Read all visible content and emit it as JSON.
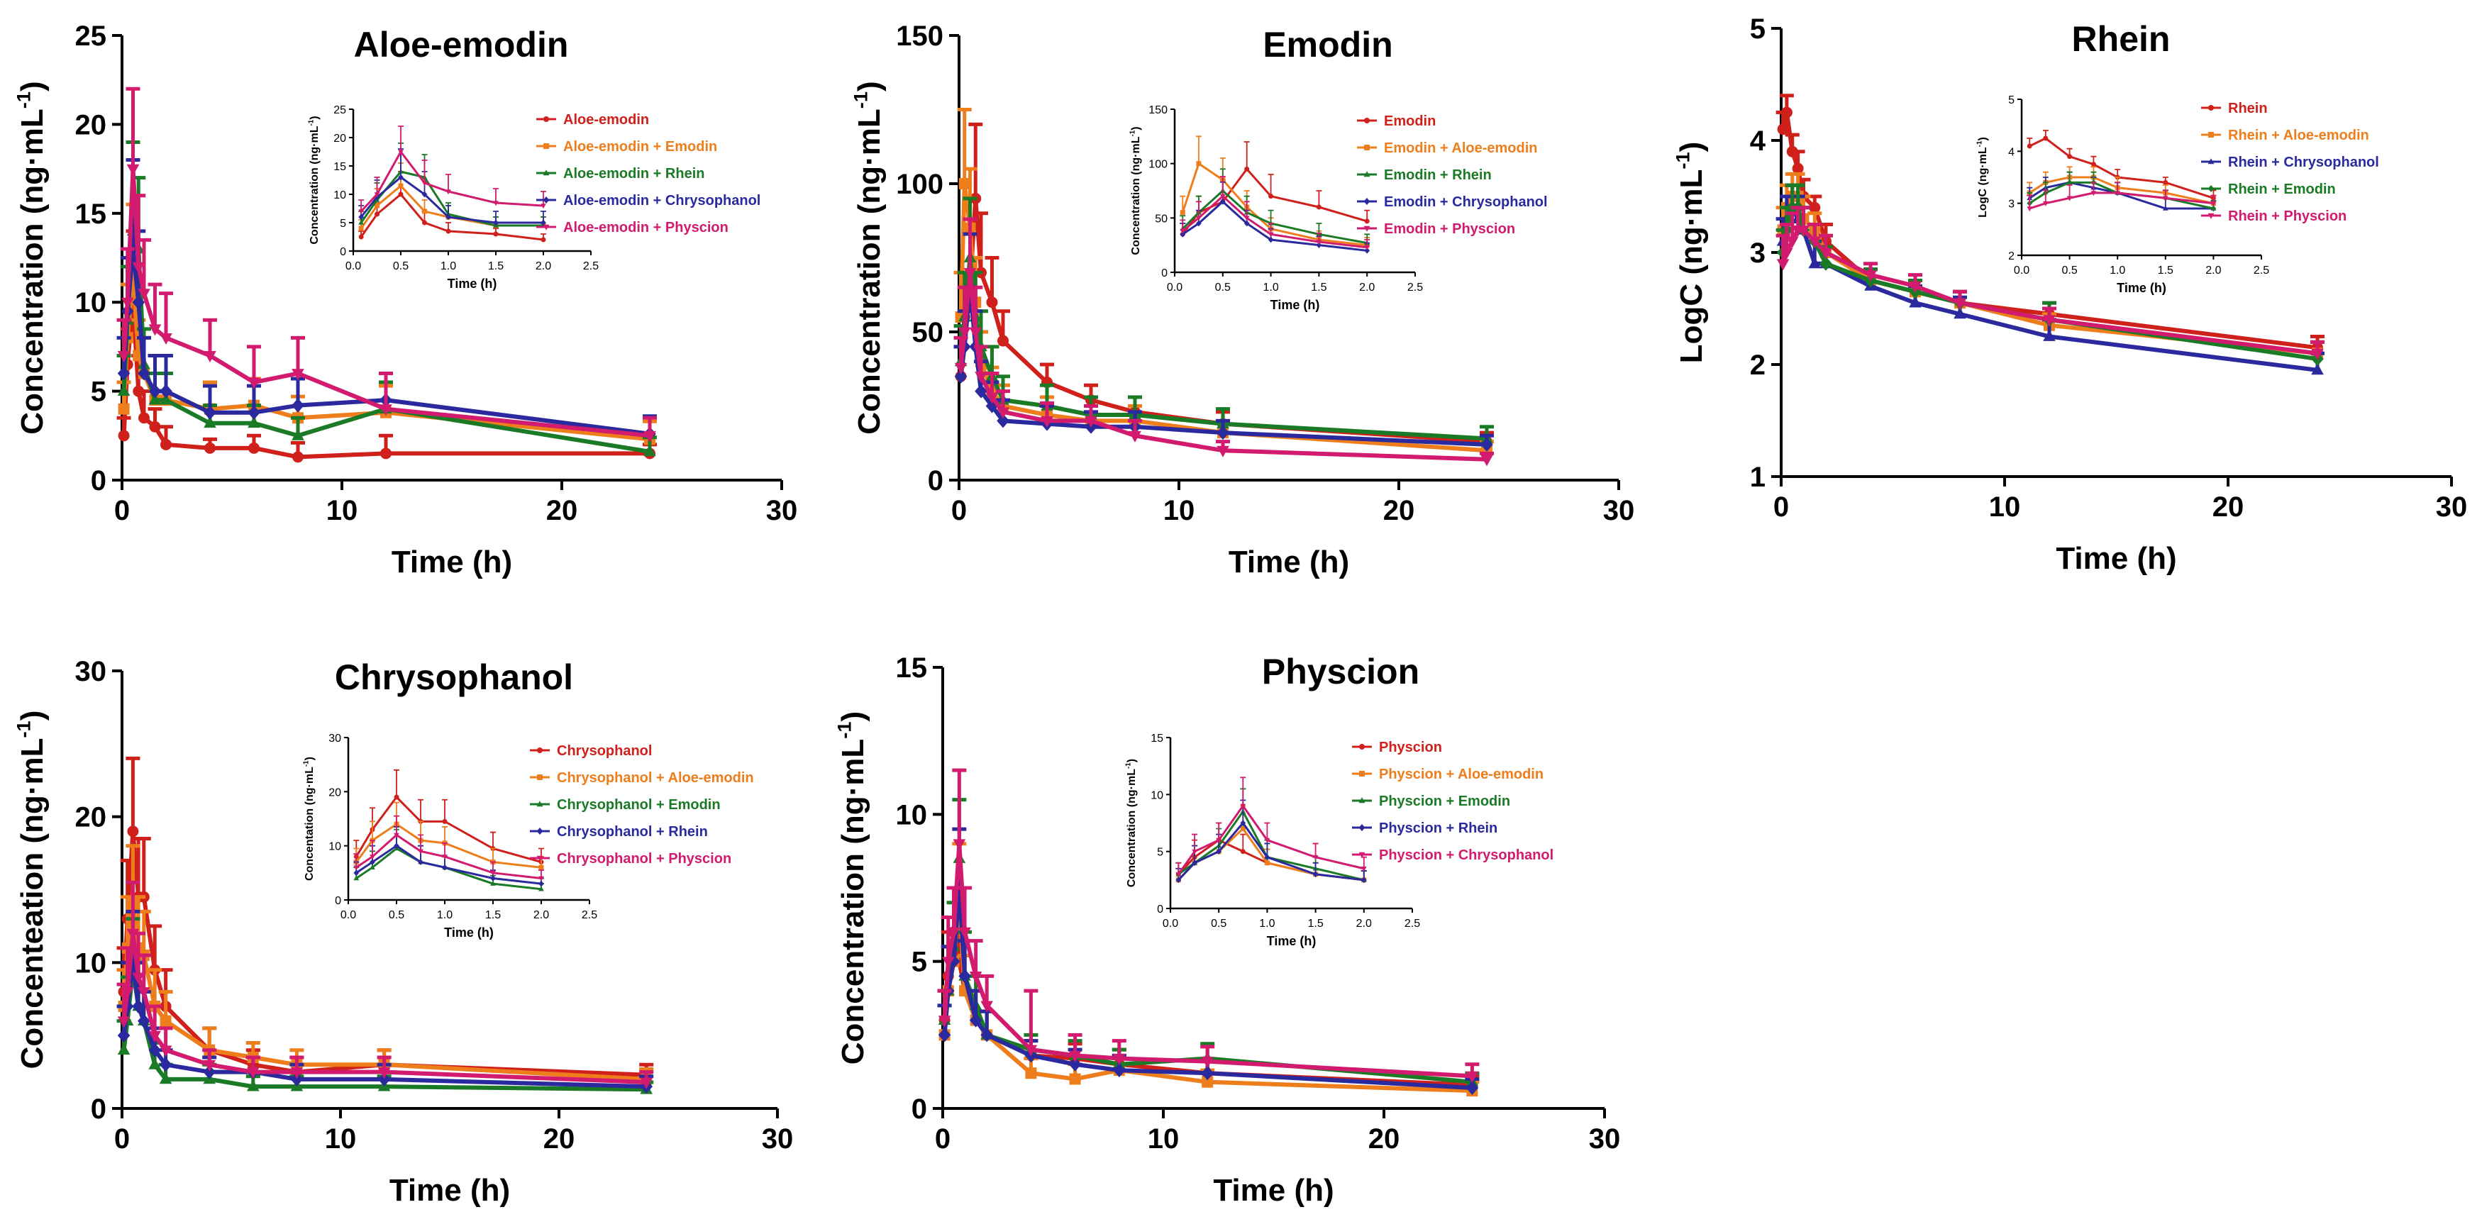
{
  "colors": {
    "red": "#d0201b",
    "orange": "#ee7d1c",
    "green": "#1a7a25",
    "blue": "#2a2a9e",
    "magenta": "#d21b6e"
  },
  "chart_data": [
    {
      "id": "aloe",
      "type": "line",
      "title": "Aloe-emodin",
      "xlabel": "Time (h)",
      "ylabel": "Concentration (ng·mL",
      "ylabel_sup": "-1",
      "ylabel_tail": ")",
      "xlim": [
        0,
        30
      ],
      "ylim": [
        0,
        25
      ],
      "xticks": [
        0,
        10,
        20,
        30
      ],
      "yticks": [
        0,
        5,
        10,
        15,
        20,
        25
      ],
      "x": [
        0.083,
        0.25,
        0.5,
        0.75,
        1,
        1.5,
        2,
        4,
        6,
        8,
        12,
        24
      ],
      "series": [
        {
          "name": "Aloe-emodin",
          "color": "red",
          "values": [
            2.5,
            6.5,
            10.0,
            5.0,
            3.5,
            3.0,
            2.0,
            1.8,
            1.8,
            1.3,
            1.5,
            1.5
          ],
          "err": [
            1,
            2,
            4,
            2,
            1.5,
            1,
            1,
            0.5,
            0.7,
            0.8,
            1,
            0.5
          ]
        },
        {
          "name": "Aloe-emodin + Emodin",
          "color": "orange",
          "values": [
            4.0,
            8.0,
            11.5,
            7.0,
            6.0,
            4.5,
            4.5,
            4.0,
            4.2,
            3.5,
            3.8,
            2.3
          ],
          "err": [
            1.5,
            3,
            4,
            2,
            2,
            1.5,
            1.5,
            1.5,
            1.5,
            1.2,
            1.5,
            1
          ]
        },
        {
          "name": "Aloe-emodin + Rhein",
          "color": "green",
          "values": [
            5.0,
            9.0,
            14.0,
            13.0,
            6.5,
            4.5,
            4.5,
            3.2,
            3.2,
            2.5,
            4.0,
            1.6
          ],
          "err": [
            2,
            3,
            5,
            4,
            2,
            1.5,
            1.5,
            1,
            1,
            1,
            1.5,
            0.8
          ]
        },
        {
          "name": "Aloe-emodin + Chrysophanol",
          "color": "blue",
          "values": [
            6.0,
            9.5,
            13.0,
            10.0,
            6.0,
            5.0,
            5.0,
            3.8,
            3.8,
            4.2,
            4.5,
            2.6
          ],
          "err": [
            2,
            3,
            5,
            4,
            2,
            2,
            2,
            1.5,
            1.5,
            1.5,
            1.5,
            1
          ]
        },
        {
          "name": "Aloe-emodin + Physcion",
          "color": "magenta",
          "values": [
            7.0,
            10.0,
            17.5,
            12.0,
            10.5,
            8.5,
            8.0,
            7.0,
            5.5,
            6.0,
            4.0,
            2.5
          ],
          "err": [
            2,
            3,
            4.5,
            4,
            3,
            2.5,
            2.5,
            2,
            2,
            2,
            2,
            1
          ]
        }
      ],
      "inset": {
        "xlabel": "Time (h)",
        "ylabel": "Concentration (ng·mL",
        "ylabel_sup": "-1",
        "ylabel_tail": ")",
        "xlim": [
          0,
          2.5
        ],
        "ylim": [
          0,
          25
        ],
        "xticks": [
          "0.0",
          "0.5",
          "1.0",
          "1.5",
          "2.0",
          "2.5"
        ],
        "yticks": [
          "0",
          "5",
          "10",
          "15",
          "20",
          "25"
        ],
        "npoints": 7
      }
    },
    {
      "id": "emodin",
      "type": "line",
      "title": "Emodin",
      "xlabel": "Time (h)",
      "ylabel": "Concentration (ng·mL",
      "ylabel_sup": "-1",
      "ylabel_tail": ")",
      "xlim": [
        0,
        30
      ],
      "ylim": [
        0,
        150
      ],
      "xticks": [
        0,
        10,
        20,
        30
      ],
      "yticks": [
        0,
        50,
        100,
        150
      ],
      "x": [
        0.083,
        0.25,
        0.5,
        0.75,
        1,
        1.5,
        2,
        4,
        6,
        8,
        12,
        24
      ],
      "series": [
        {
          "name": "Emodin",
          "color": "red",
          "values": [
            35,
            55,
            65,
            95,
            70,
            60,
            47,
            33,
            27,
            23,
            19,
            13
          ],
          "err": [
            10,
            15,
            20,
            25,
            20,
            15,
            10,
            6,
            5,
            5,
            4,
            3
          ]
        },
        {
          "name": "Emodin + Aloe-emodin",
          "color": "orange",
          "values": [
            55,
            100,
            85,
            60,
            40,
            30,
            25,
            22,
            20,
            20,
            16,
            10
          ],
          "err": [
            15,
            25,
            20,
            15,
            10,
            8,
            7,
            6,
            5,
            5,
            4,
            3
          ]
        },
        {
          "name": "Emodin + Rhein",
          "color": "green",
          "values": [
            40,
            55,
            75,
            55,
            45,
            35,
            27,
            25,
            22,
            22,
            19,
            14
          ],
          "err": [
            12,
            15,
            20,
            15,
            12,
            10,
            8,
            7,
            6,
            6,
            5,
            4
          ]
        },
        {
          "name": "Emodin + Chrysophanol",
          "color": "blue",
          "values": [
            35,
            45,
            65,
            45,
            30,
            25,
            20,
            19,
            18,
            18,
            16,
            12
          ],
          "err": [
            10,
            12,
            18,
            12,
            10,
            8,
            7,
            6,
            5,
            5,
            4,
            3
          ]
        },
        {
          "name": "Emodin + Physcion",
          "color": "magenta",
          "values": [
            38,
            50,
            70,
            50,
            35,
            28,
            23,
            20,
            20,
            15,
            10,
            7
          ],
          "err": [
            10,
            15,
            18,
            15,
            10,
            8,
            7,
            6,
            5,
            5,
            3,
            2
          ]
        }
      ],
      "inset": {
        "xlabel": "Time (h)",
        "ylabel": "Concentration (ng·mL",
        "ylabel_sup": "-1",
        "ylabel_tail": ")",
        "xlim": [
          0,
          2.5
        ],
        "ylim": [
          0,
          150
        ],
        "xticks": [
          "0.0",
          "0.5",
          "1.0",
          "1.5",
          "2.0",
          "2.5"
        ],
        "yticks": [
          "0",
          "50",
          "100",
          "150"
        ],
        "npoints": 7
      }
    },
    {
      "id": "rhein",
      "type": "line",
      "title": "Rhein",
      "xlabel": "Time (h)",
      "ylabel": "LogC (ng·mL",
      "ylabel_sup": "-1",
      "ylabel_tail": ")",
      "xlim": [
        0,
        30
      ],
      "ylim": [
        1,
        5
      ],
      "xticks": [
        0,
        10,
        20,
        30
      ],
      "yticks": [
        1,
        2,
        3,
        4,
        5
      ],
      "x": [
        0.083,
        0.25,
        0.5,
        0.75,
        1,
        1.5,
        2,
        4,
        6,
        8,
        12,
        24
      ],
      "series": [
        {
          "name": "Rhein",
          "color": "red",
          "values": [
            4.1,
            4.25,
            3.9,
            3.75,
            3.5,
            3.4,
            3.1,
            2.75,
            2.65,
            2.55,
            2.45,
            2.15
          ],
          "err": [
            0.15,
            0.15,
            0.15,
            0.15,
            0.15,
            0.1,
            0.15,
            0.1,
            0.1,
            0.1,
            0.1,
            0.1
          ]
        },
        {
          "name": "Rhein + Aloe-emodin",
          "color": "orange",
          "values": [
            3.2,
            3.4,
            3.5,
            3.5,
            3.3,
            3.2,
            3.0,
            2.75,
            2.65,
            2.55,
            2.35,
            2.1
          ],
          "err": [
            0.2,
            0.2,
            0.2,
            0.2,
            0.2,
            0.15,
            0.15,
            0.1,
            0.1,
            0.1,
            0.1,
            0.1
          ]
        },
        {
          "name": "Rhein + Chrysophanol",
          "color": "blue",
          "values": [
            3.1,
            3.3,
            3.4,
            3.3,
            3.2,
            2.9,
            2.9,
            2.7,
            2.55,
            2.45,
            2.25,
            1.95
          ],
          "err": [
            0.2,
            0.2,
            0.2,
            0.2,
            0.2,
            0.2,
            0.15,
            0.15,
            0.15,
            0.15,
            0.15,
            0.15
          ]
        },
        {
          "name": "Rhein + Emodin",
          "color": "green",
          "values": [
            3.0,
            3.2,
            3.4,
            3.4,
            3.2,
            3.1,
            2.9,
            2.75,
            2.65,
            2.55,
            2.4,
            2.05
          ],
          "err": [
            0.2,
            0.2,
            0.2,
            0.2,
            0.2,
            0.15,
            0.15,
            0.1,
            0.1,
            0.1,
            0.15,
            0.15
          ]
        },
        {
          "name": "Rhein + Physcion",
          "color": "magenta",
          "values": [
            2.9,
            3.0,
            3.1,
            3.2,
            3.2,
            3.1,
            3.0,
            2.8,
            2.7,
            2.55,
            2.4,
            2.1
          ],
          "err": [
            0.25,
            0.25,
            0.25,
            0.2,
            0.2,
            0.15,
            0.15,
            0.1,
            0.1,
            0.1,
            0.1,
            0.1
          ]
        }
      ],
      "inset": {
        "xlabel": "Time (h)",
        "ylabel": "LogC (ng·mL",
        "ylabel_sup": "-1",
        "ylabel_tail": ")",
        "xlim": [
          0,
          2.5
        ],
        "ylim": [
          2,
          5
        ],
        "xticks": [
          "0.0",
          "0.5",
          "1.0",
          "1.5",
          "2.0",
          "2.5"
        ],
        "yticks": [
          "2",
          "3",
          "4",
          "5"
        ],
        "npoints": 7
      }
    },
    {
      "id": "chryso",
      "type": "line",
      "title": "Chrysophanol",
      "xlabel": "Time (h)",
      "ylabel": "Concenteation (ng·mL",
      "ylabel_sup": "-1",
      "ylabel_tail": ")",
      "xlim": [
        0,
        30
      ],
      "ylim": [
        0,
        30
      ],
      "xticks": [
        0,
        10,
        20,
        30
      ],
      "yticks": [
        0,
        10,
        20,
        30
      ],
      "x": [
        0.083,
        0.25,
        0.5,
        0.75,
        1,
        1.5,
        2,
        4,
        6,
        8,
        12,
        24
      ],
      "series": [
        {
          "name": "Chrysophanol",
          "color": "red",
          "values": [
            8,
            13,
            19,
            14.5,
            14.5,
            9.5,
            7,
            4,
            3,
            2.5,
            3,
            2.3
          ],
          "err": [
            3,
            4,
            5,
            4,
            4,
            3,
            2.5,
            1.5,
            1,
            1,
            1,
            0.7
          ]
        },
        {
          "name": "Chrysophanol + Aloe-emodin",
          "color": "orange",
          "values": [
            7,
            11,
            14,
            11,
            10.5,
            7,
            6,
            4,
            3.5,
            3,
            3,
            2
          ],
          "err": [
            2.5,
            3.5,
            4,
            3.5,
            3,
            2.5,
            2,
            1.5,
            1,
            1,
            1,
            0.7
          ]
        },
        {
          "name": "Chrysophanol + Emodin",
          "color": "green",
          "values": [
            4,
            6,
            9.5,
            7,
            6,
            3,
            2,
            2,
            1.5,
            1.5,
            1.5,
            1.3
          ],
          "err": [
            2,
            3,
            3.5,
            3,
            2,
            1.5,
            1,
            1,
            0.7,
            0.7,
            0.7,
            0.5
          ]
        },
        {
          "name": "Chrysophanol + Rhein",
          "color": "blue",
          "values": [
            5,
            7,
            10,
            7,
            6,
            4,
            3,
            2.5,
            2.5,
            2,
            2,
            1.5
          ],
          "err": [
            2,
            3,
            3.5,
            3,
            2,
            1.5,
            1,
            1,
            1,
            1,
            1,
            0.7
          ]
        },
        {
          "name": "Chrysophanol + Physcion",
          "color": "magenta",
          "values": [
            6,
            8,
            12,
            9,
            8,
            5,
            4,
            3,
            2.5,
            2.5,
            2.5,
            1.8
          ],
          "err": [
            2.5,
            3,
            3.5,
            3,
            2.5,
            2,
            1.5,
            1,
            1,
            1,
            1,
            0.7
          ]
        }
      ],
      "inset": {
        "xlabel": "Time (h)",
        "ylabel": "Concentation (ng·mL",
        "ylabel_sup": "-1",
        "ylabel_tail": ")",
        "xlim": [
          0,
          2.5
        ],
        "ylim": [
          0,
          30
        ],
        "xticks": [
          "0.0",
          "0.5",
          "1.0",
          "1.5",
          "2.0",
          "2.5"
        ],
        "yticks": [
          "0",
          "10",
          "20",
          "30"
        ],
        "npoints": 7
      }
    },
    {
      "id": "physcion",
      "type": "line",
      "title": "Physcion",
      "xlabel": "Time (h)",
      "ylabel": "Concentration (ng·mL",
      "ylabel_sup": "-1",
      "ylabel_tail": ")",
      "xlim": [
        0,
        30
      ],
      "ylim": [
        0,
        15
      ],
      "xticks": [
        0,
        10,
        20,
        30
      ],
      "yticks": [
        0,
        5,
        10,
        15
      ],
      "x": [
        0.083,
        0.25,
        0.5,
        0.75,
        1,
        1.5,
        2,
        4,
        6,
        8,
        12,
        24
      ],
      "series": [
        {
          "name": "Physcion",
          "color": "red",
          "values": [
            3,
            4.5,
            6,
            5,
            4,
            3,
            2.5,
            1.8,
            1.7,
            1.5,
            1.2,
            0.8
          ],
          "err": [
            1,
            1.5,
            1.5,
            1.5,
            1.2,
            1,
            0.8,
            0.5,
            0.5,
            0.5,
            0.4,
            0.3
          ]
        },
        {
          "name": "Physcion + Aloe-emodin",
          "color": "orange",
          "values": [
            2.5,
            4,
            5,
            7,
            4,
            3,
            2.5,
            1.2,
            1,
            1.3,
            0.9,
            0.6
          ],
          "err": [
            1,
            1.5,
            1.5,
            2,
            1.2,
            1,
            0.8,
            0.5,
            0.5,
            0.5,
            0.4,
            0.3
          ]
        },
        {
          "name": "Physcion + Emodin",
          "color": "green",
          "values": [
            3,
            4,
            5.5,
            8.5,
            4.5,
            3.5,
            2.5,
            2,
            1.8,
            1.5,
            1.7,
            0.9
          ],
          "err": [
            1,
            1.5,
            1.5,
            2,
            1.5,
            1,
            0.8,
            0.5,
            0.5,
            0.5,
            0.5,
            0.3
          ]
        },
        {
          "name": "Physcion + Rhein",
          "color": "blue",
          "values": [
            2.5,
            4,
            5,
            7.5,
            4.5,
            3,
            2.5,
            1.8,
            1.5,
            1.3,
            1.2,
            0.7
          ],
          "err": [
            1,
            1.5,
            1.5,
            2,
            1.2,
            1,
            0.8,
            0.5,
            0.5,
            0.5,
            0.4,
            0.3
          ]
        },
        {
          "name": "Physcion + Chrysophanol",
          "color": "magenta",
          "values": [
            3,
            5,
            6,
            9,
            6,
            4.5,
            3.5,
            2,
            1.8,
            1.7,
            1.6,
            1.1
          ],
          "err": [
            1,
            1.5,
            1.5,
            2.5,
            1.5,
            1.2,
            1,
            2,
            0.7,
            0.6,
            0.5,
            0.4
          ]
        }
      ],
      "inset": {
        "xlabel": "Time (h)",
        "ylabel": "Concentration (ng·mL",
        "ylabel_sup": "-1",
        "ylabel_tail": ")",
        "xlim": [
          0,
          2.5
        ],
        "ylim": [
          0,
          15
        ],
        "xticks": [
          "0.0",
          "0.5",
          "1.0",
          "1.5",
          "2.0",
          "2.5"
        ],
        "yticks": [
          "0",
          "5",
          "10",
          "15"
        ],
        "npoints": 7
      }
    }
  ]
}
